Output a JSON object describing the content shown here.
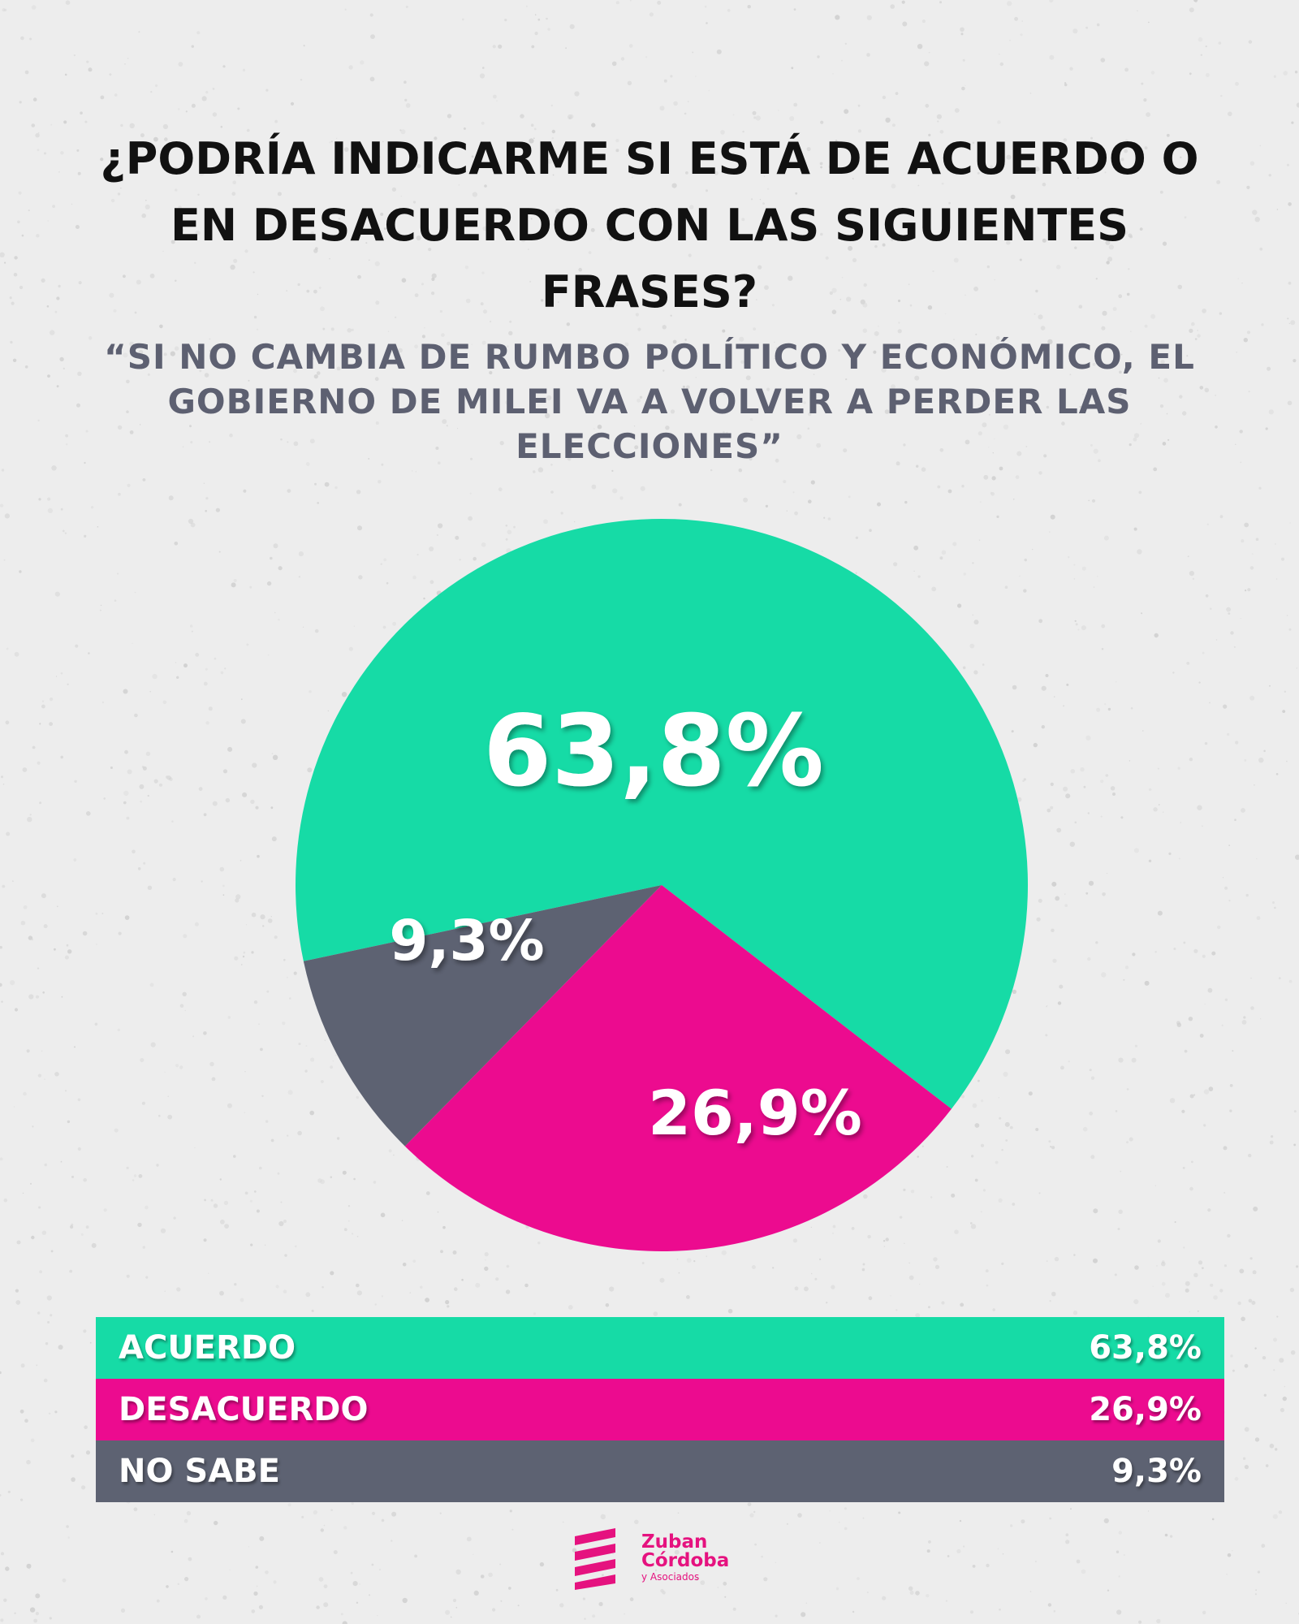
{
  "title": "¿PODRÍA INDICARME SI ESTÁ DE ACUERDO O EN DESACUERDO CON LAS SIGUIENTES FRASES?",
  "subtitle": "“SI NO CAMBIA DE RUMBO POLÍTICO Y ECONÓMICO, EL GOBIERNO DE MILEI VA A VOLVER A PERDER LAS ELECCIONES”",
  "colors": {
    "acuerdo": "#16dba6",
    "desacuerdo": "#ec0b8f",
    "no_sabe": "#5d6272",
    "title": "#111111",
    "subtitle": "#5d6071",
    "brand": "#e5127f",
    "background": "#ededed"
  },
  "chart_data": {
    "type": "pie",
    "title": "¿PODRÍA INDICARME SI ESTÁ DE ACUERDO O EN DESACUERDO CON LAS SIGUIENTES FRASES?",
    "subtitle": "“SI NO CAMBIA DE RUMBO POLÍTICO Y ECONÓMICO, EL GOBIERNO DE MILEI VA A VOLVER A PERDER LAS ELECCIONES”",
    "categories": [
      "ACUERDO",
      "DESACUERDO",
      "NO SABE"
    ],
    "values": [
      63.8,
      26.9,
      9.3
    ],
    "labels": [
      "63,8%",
      "26,9%",
      "9,3%"
    ],
    "colors": [
      "#16dba6",
      "#ec0b8f",
      "#5d6272"
    ],
    "legend": "bottom"
  },
  "legend": [
    {
      "label": "ACUERDO",
      "value": "63,8%",
      "color": "#16dba6"
    },
    {
      "label": "DESACUERDO",
      "value": "26,9%",
      "color": "#ec0b8f"
    },
    {
      "label": "NO SABE",
      "value": "9,3%",
      "color": "#5d6272"
    }
  ],
  "logo": {
    "line1": "Zuban",
    "line2": "Córdoba",
    "line3": "y Asociados"
  }
}
